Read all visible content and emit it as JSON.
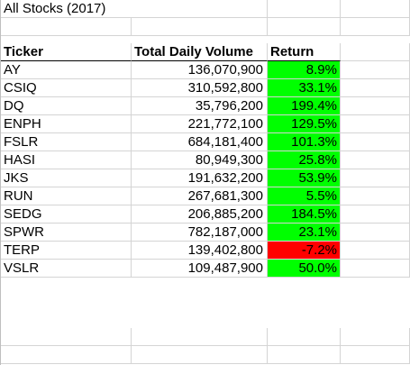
{
  "title": "All Stocks (2017)",
  "headers": {
    "ticker": "Ticker",
    "volume": "Total Daily Volume",
    "return": "Return"
  },
  "colors": {
    "positive": "#00ff00",
    "negative": "#ff0000",
    "gridline": "#d4d4d4"
  },
  "rows": [
    {
      "ticker": "AY",
      "volume": "136,070,900",
      "return": "8.9%",
      "sign": "positive"
    },
    {
      "ticker": "CSIQ",
      "volume": "310,592,800",
      "return": "33.1%",
      "sign": "positive"
    },
    {
      "ticker": "DQ",
      "volume": "35,796,200",
      "return": "199.4%",
      "sign": "positive"
    },
    {
      "ticker": "ENPH",
      "volume": "221,772,100",
      "return": "129.5%",
      "sign": "positive"
    },
    {
      "ticker": "FSLR",
      "volume": "684,181,400",
      "return": "101.3%",
      "sign": "positive"
    },
    {
      "ticker": "HASI",
      "volume": "80,949,300",
      "return": "25.8%",
      "sign": "positive"
    },
    {
      "ticker": "JKS",
      "volume": "191,632,200",
      "return": "53.9%",
      "sign": "positive"
    },
    {
      "ticker": "RUN",
      "volume": "267,681,300",
      "return": "5.5%",
      "sign": "positive"
    },
    {
      "ticker": "SEDG",
      "volume": "206,885,200",
      "return": "184.5%",
      "sign": "positive"
    },
    {
      "ticker": "SPWR",
      "volume": "782,187,000",
      "return": "23.1%",
      "sign": "positive"
    },
    {
      "ticker": "TERP",
      "volume": "139,402,800",
      "return": "-7.2%",
      "sign": "negative"
    },
    {
      "ticker": "VSLR",
      "volume": "109,487,900",
      "return": "50.0%",
      "sign": "positive"
    }
  ]
}
